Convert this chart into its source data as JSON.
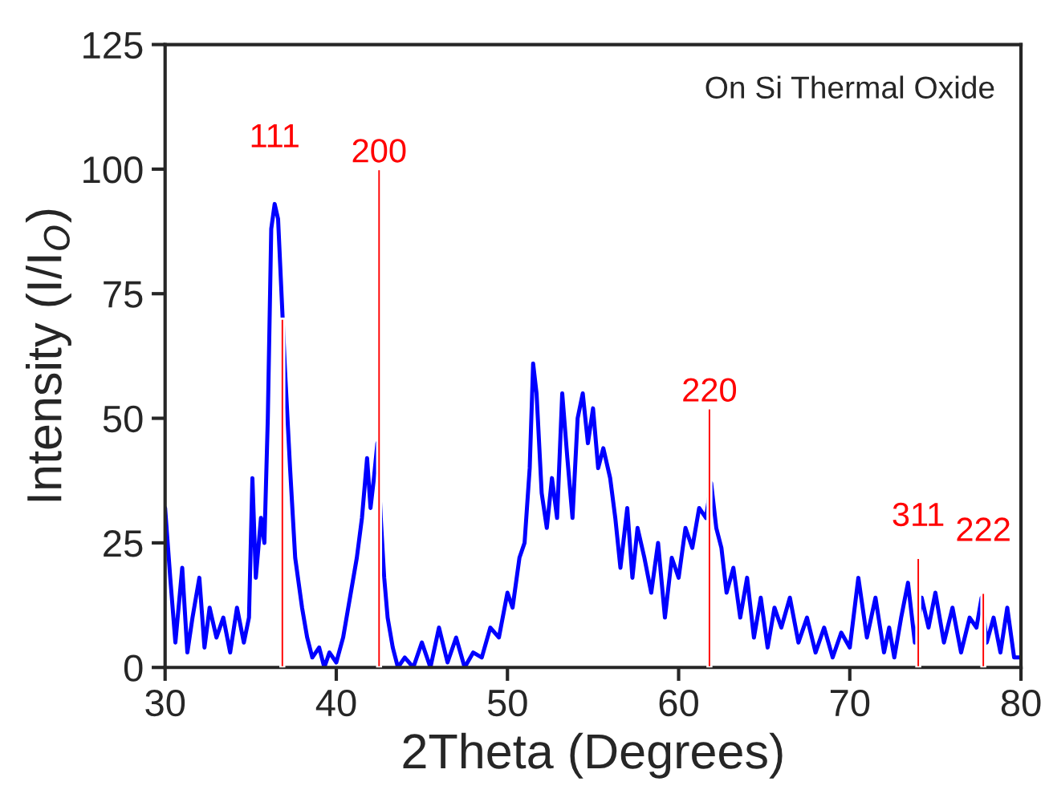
{
  "chart_data": {
    "type": "line",
    "xlabel": "2Theta (Degrees)",
    "ylabel": "Intensity (I/I$_{O}$)",
    "xlim": [
      30,
      80
    ],
    "ylim": [
      0,
      125
    ],
    "xticks": [
      30,
      40,
      50,
      60,
      70,
      80
    ],
    "yticks": [
      0,
      25,
      50,
      75,
      100,
      125
    ],
    "grid": false,
    "legend": false,
    "marker": "none",
    "line_style": "solid",
    "series": [
      {
        "color": "#0000ff",
        "x": [
          30,
          30.3,
          30.6,
          31,
          31.3,
          31.6,
          32,
          32.3,
          32.6,
          33,
          33.4,
          33.8,
          34.2,
          34.6,
          34.9,
          35.1,
          35.3,
          35.6,
          35.8,
          36,
          36.2,
          36.4,
          36.6,
          36.8,
          37,
          37.3,
          37.6,
          38,
          38.3,
          38.6,
          39,
          39.3,
          39.6,
          40,
          40.4,
          40.8,
          41.2,
          41.5,
          41.8,
          42,
          42.2,
          42.4,
          42.6,
          42.8,
          43,
          43.3,
          43.6,
          44,
          44.5,
          45,
          45.5,
          46,
          46.5,
          47,
          47.5,
          48,
          48.5,
          49,
          49.5,
          50,
          50.3,
          50.7,
          51,
          51.3,
          51.5,
          51.7,
          52,
          52.3,
          52.6,
          52.9,
          53.2,
          53.5,
          53.8,
          54.1,
          54.4,
          54.7,
          55,
          55.3,
          55.6,
          56,
          56.3,
          56.6,
          57,
          57.3,
          57.6,
          58,
          58.4,
          58.8,
          59.2,
          59.6,
          60,
          60.4,
          60.8,
          61.2,
          61.6,
          61.9,
          62.2,
          62.5,
          62.8,
          63.2,
          63.6,
          64,
          64.4,
          64.8,
          65.2,
          65.6,
          66,
          66.5,
          67,
          67.5,
          68,
          68.5,
          69,
          69.5,
          70,
          70.5,
          71,
          71.5,
          72,
          72.3,
          72.6,
          73,
          73.4,
          73.8,
          74.2,
          74.6,
          75,
          75.5,
          76,
          76.5,
          77,
          77.4,
          77.7,
          78,
          78.4,
          78.8,
          79.2,
          79.6,
          80
        ],
        "values": [
          32,
          18,
          5,
          20,
          3,
          10,
          18,
          4,
          12,
          6,
          10,
          3,
          12,
          5,
          10,
          38,
          18,
          30,
          25,
          50,
          88,
          93,
          90,
          75,
          60,
          40,
          22,
          12,
          6,
          2,
          4,
          0,
          3,
          1,
          6,
          14,
          22,
          30,
          42,
          32,
          38,
          45,
          30,
          18,
          10,
          4,
          0,
          2,
          0,
          5,
          0,
          8,
          1,
          6,
          0,
          3,
          2,
          8,
          6,
          15,
          12,
          22,
          25,
          40,
          61,
          55,
          35,
          28,
          38,
          30,
          55,
          42,
          30,
          50,
          55,
          45,
          52,
          40,
          44,
          38,
          30,
          20,
          32,
          18,
          28,
          22,
          15,
          25,
          10,
          22,
          18,
          28,
          24,
          32,
          30,
          37,
          28,
          24,
          15,
          20,
          10,
          18,
          6,
          14,
          4,
          12,
          8,
          14,
          5,
          10,
          3,
          8,
          2,
          7,
          4,
          18,
          6,
          14,
          3,
          8,
          2,
          10,
          17,
          5,
          14,
          8,
          15,
          5,
          12,
          3,
          10,
          8,
          14,
          5,
          10,
          3,
          12,
          2,
          2
        ]
      },
      {
        "type": "bar",
        "color": "#ff0000",
        "x": [
          36.85,
          42.5,
          61.8,
          74.0,
          77.8
        ],
        "values": [
          70,
          100,
          52,
          22,
          15
        ]
      }
    ],
    "annotations": [
      {
        "text": "111",
        "x": 36.4,
        "y": 93
      },
      {
        "text": "200",
        "x": 42.5,
        "y": 100
      },
      {
        "text": "220",
        "x": 61.8,
        "y": 52
      },
      {
        "text": "311",
        "x": 74.0,
        "y": 22
      },
      {
        "text": "222",
        "x": 77.8,
        "y": 15
      },
      "On Si Thermal Oxide"
    ]
  }
}
